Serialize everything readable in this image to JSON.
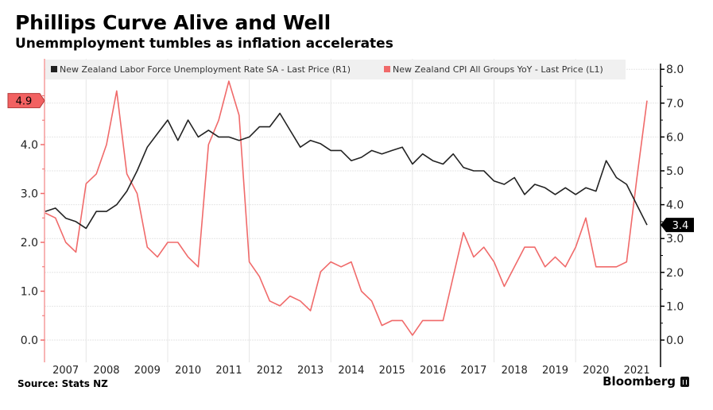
{
  "header": {
    "title": "Phillips Curve Alive and Well",
    "subtitle": "Unemmployment tumbles as inflation accelerates"
  },
  "footer": {
    "source": "Source: Stats NZ",
    "brand": "Bloomberg"
  },
  "colors": {
    "unemployment": "#222222",
    "cpi": "#f06a6a",
    "left_axis": "#f06a6a",
    "right_axis": "#000000",
    "legend_bg": "#f0f0f0",
    "grid": "#e6e6e6"
  },
  "chart_data": {
    "type": "line",
    "title": "Phillips Curve Alive and Well",
    "subtitle": "Unemmployment tumbles as inflation accelerates",
    "frequency": "quarterly",
    "x_start": "2007 Q1",
    "x_end": "2021 Q4",
    "x_tick_labels": [
      "2007",
      "2008",
      "2009",
      "2010",
      "2011",
      "2012",
      "2013",
      "2014",
      "2015",
      "2016",
      "2017",
      "2018",
      "2019",
      "2020",
      "2021"
    ],
    "grid": true,
    "legend_position": "top",
    "left_axis": {
      "label": "L1",
      "ylim": [
        0,
        5.5
      ],
      "ticks": [
        "0.0",
        "1.0",
        "2.0",
        "3.0",
        "4.0"
      ]
    },
    "right_axis": {
      "label": "R1",
      "ylim": [
        0,
        8.0
      ],
      "ticks": [
        "0.0",
        "1.0",
        "2.0",
        "3.0",
        "4.0",
        "5.0",
        "6.0",
        "7.0",
        "8.0"
      ]
    },
    "series": [
      {
        "name": "New Zealand Labor Force Unemployment Rate SA - Last Price (R1)",
        "axis": "right",
        "last_value_label": "3.4",
        "values": [
          3.8,
          3.9,
          3.6,
          3.5,
          3.3,
          3.8,
          3.8,
          4.0,
          4.4,
          5.0,
          5.7,
          6.1,
          6.5,
          5.9,
          6.5,
          6.0,
          6.2,
          6.0,
          6.0,
          5.9,
          6.0,
          6.3,
          6.3,
          6.7,
          6.2,
          5.7,
          5.9,
          5.8,
          5.6,
          5.6,
          5.3,
          5.4,
          5.6,
          5.5,
          5.6,
          5.7,
          5.2,
          5.5,
          5.3,
          5.2,
          5.5,
          5.1,
          5.0,
          5.0,
          4.7,
          4.6,
          4.8,
          4.3,
          4.6,
          4.5,
          4.3,
          4.5,
          4.3,
          4.5,
          4.4,
          5.3,
          4.8,
          4.6,
          4.0,
          3.4
        ]
      },
      {
        "name": "New Zealand CPI All Groups YoY - Last Price (L1)",
        "axis": "left",
        "last_value_label": "4.9",
        "values": [
          2.6,
          2.5,
          2.0,
          1.8,
          3.2,
          3.4,
          4.0,
          5.1,
          3.4,
          3.0,
          1.9,
          1.7,
          2.0,
          2.0,
          1.7,
          1.5,
          4.0,
          4.5,
          5.3,
          4.6,
          1.6,
          1.3,
          0.8,
          0.7,
          0.9,
          0.8,
          0.6,
          1.4,
          1.6,
          1.5,
          1.6,
          1.0,
          0.8,
          0.3,
          0.4,
          0.4,
          0.1,
          0.4,
          0.4,
          0.4,
          1.3,
          2.2,
          1.7,
          1.9,
          1.6,
          1.1,
          1.5,
          1.9,
          1.9,
          1.5,
          1.7,
          1.5,
          1.9,
          2.5,
          1.5,
          1.5,
          1.5,
          1.6,
          3.3,
          4.9
        ]
      }
    ]
  }
}
